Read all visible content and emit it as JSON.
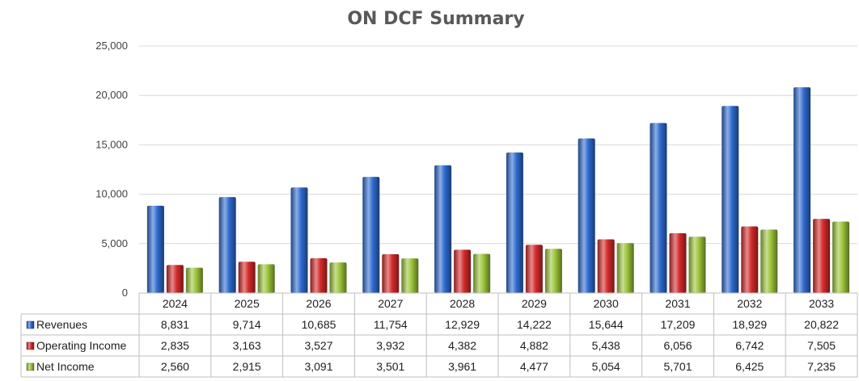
{
  "chart_data": {
    "type": "bar",
    "title": "ON DCF Summary",
    "categories": [
      "2024",
      "2025",
      "2026",
      "2027",
      "2028",
      "2029",
      "2030",
      "2031",
      "2032",
      "2033"
    ],
    "ylim": [
      0,
      25000
    ],
    "yticks": [
      "0",
      "5,000",
      "10,000",
      "15,000",
      "20,000",
      "25,000"
    ],
    "ytick_values": [
      0,
      5000,
      10000,
      15000,
      20000,
      25000
    ],
    "grid": true,
    "legend": "data-table-left",
    "series": [
      {
        "name": "Revenues",
        "color": "#2e6bd0",
        "values": [
          8831,
          9714,
          10685,
          11754,
          12929,
          14222,
          15644,
          17209,
          18929,
          20822
        ],
        "labels": [
          "8,831",
          "9,714",
          "10,685",
          "11,754",
          "12,929",
          "14,222",
          "15,644",
          "17,209",
          "18,929",
          "20,822"
        ]
      },
      {
        "name": "Operating Income",
        "color": "#d42a2a",
        "values": [
          2835,
          3163,
          3527,
          3932,
          4382,
          4882,
          5438,
          6056,
          6742,
          7505
        ],
        "labels": [
          "2,835",
          "3,163",
          "3,527",
          "3,932",
          "4,382",
          "4,882",
          "5,438",
          "6,056",
          "6,742",
          "7,505"
        ]
      },
      {
        "name": "Net Income",
        "color": "#9cc43a",
        "values": [
          2560,
          2915,
          3091,
          3501,
          3961,
          4477,
          5054,
          5701,
          6425,
          7235
        ],
        "labels": [
          "2,560",
          "2,915",
          "3,091",
          "3,501",
          "3,961",
          "4,477",
          "5,054",
          "5,701",
          "6,425",
          "7,235"
        ]
      }
    ]
  }
}
